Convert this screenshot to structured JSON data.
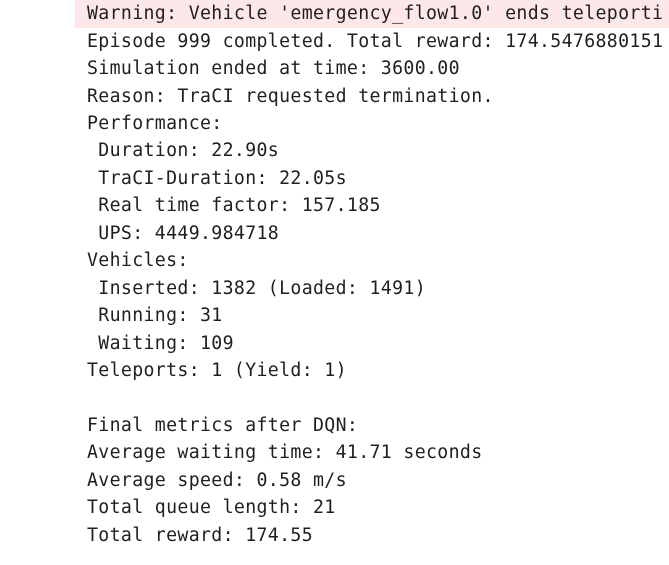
{
  "console": {
    "warning": "Warning: Vehicle 'emergency_flow1.0' ends teleporti",
    "lines": [
      "Episode 999 completed. Total reward: 174.5476880151",
      "Simulation ended at time: 3600.00",
      "Reason: TraCI requested termination.",
      "Performance:",
      " Duration: 22.90s",
      " TraCI-Duration: 22.05s",
      " Real time factor: 157.185",
      " UPS: 4449.984718",
      "Vehicles:",
      " Inserted: 1382 (Loaded: 1491)",
      " Running: 31",
      " Waiting: 109",
      "Teleports: 1 (Yield: 1)",
      "",
      "Final metrics after DQN:",
      "Average waiting time: 41.71 seconds",
      "Average speed: 0.58 m/s",
      "Total queue length: 21",
      "Total reward: 174.55"
    ]
  },
  "colors": {
    "warning_background": "#fde7e9",
    "text": "#1f1f1f",
    "background": "#ffffff"
  }
}
